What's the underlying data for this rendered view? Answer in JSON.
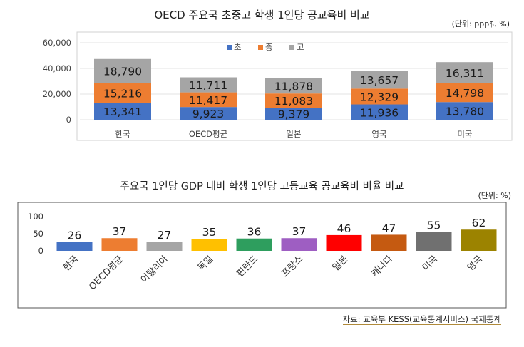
{
  "chart1": {
    "title": "OECD 주요국 초중고 학생 1인당 공교육비 비교",
    "unit": "(단위: ppp$, %)"
  },
  "chart2": {
    "title": "주요국 1인당 GDP 대비 학생 1인당 고등교육 공교육비 비율 비교",
    "unit": "(단위: %)"
  },
  "source": "자료: 교육부 KESS(교육통계서비스) 국제통계",
  "chart_data": [
    {
      "type": "bar",
      "stacked": true,
      "categories": [
        "한국",
        "OECD평균",
        "일본",
        "영국",
        "미국"
      ],
      "series": [
        {
          "name": "초",
          "color": "#4472c4",
          "values": [
            13341,
            9923,
            9379,
            11936,
            13780
          ]
        },
        {
          "name": "중",
          "color": "#ed7d31",
          "values": [
            15216,
            11417,
            11083,
            12329,
            14798
          ]
        },
        {
          "name": "고",
          "color": "#a5a5a5",
          "values": [
            18790,
            11711,
            11878,
            13657,
            16311
          ]
        }
      ],
      "value_labels": [
        [
          "13,341",
          "9,923",
          "9,379",
          "11,936",
          "13,780"
        ],
        [
          "15,216",
          "11,417",
          "11,083",
          "12,329",
          "14,798"
        ],
        [
          "18,790",
          "11,711",
          "11,878",
          "13,657",
          "16,311"
        ]
      ],
      "ylim": [
        0,
        60000
      ],
      "yticks": [
        0,
        20000,
        40000,
        60000
      ],
      "ytick_labels": [
        "0",
        "20,000",
        "40,000",
        "60,000"
      ],
      "grid": true,
      "legend": "top-center"
    },
    {
      "type": "bar",
      "categories": [
        "한국",
        "OECD평균",
        "이탈리아",
        "독일",
        "핀란드",
        "프랑스",
        "일본",
        "캐나다",
        "미국",
        "영국"
      ],
      "values": [
        26,
        37,
        27,
        35,
        36,
        37,
        46,
        47,
        55,
        62
      ],
      "colors": [
        "#4472c4",
        "#ed7d31",
        "#a5a5a5",
        "#ffc000",
        "#2e9e5e",
        "#9e5ec2",
        "#ff0000",
        "#c55a11",
        "#707070",
        "#9c8300"
      ],
      "ylim": [
        0,
        100
      ],
      "yticks": [
        0,
        50,
        100
      ],
      "grid": false
    }
  ]
}
